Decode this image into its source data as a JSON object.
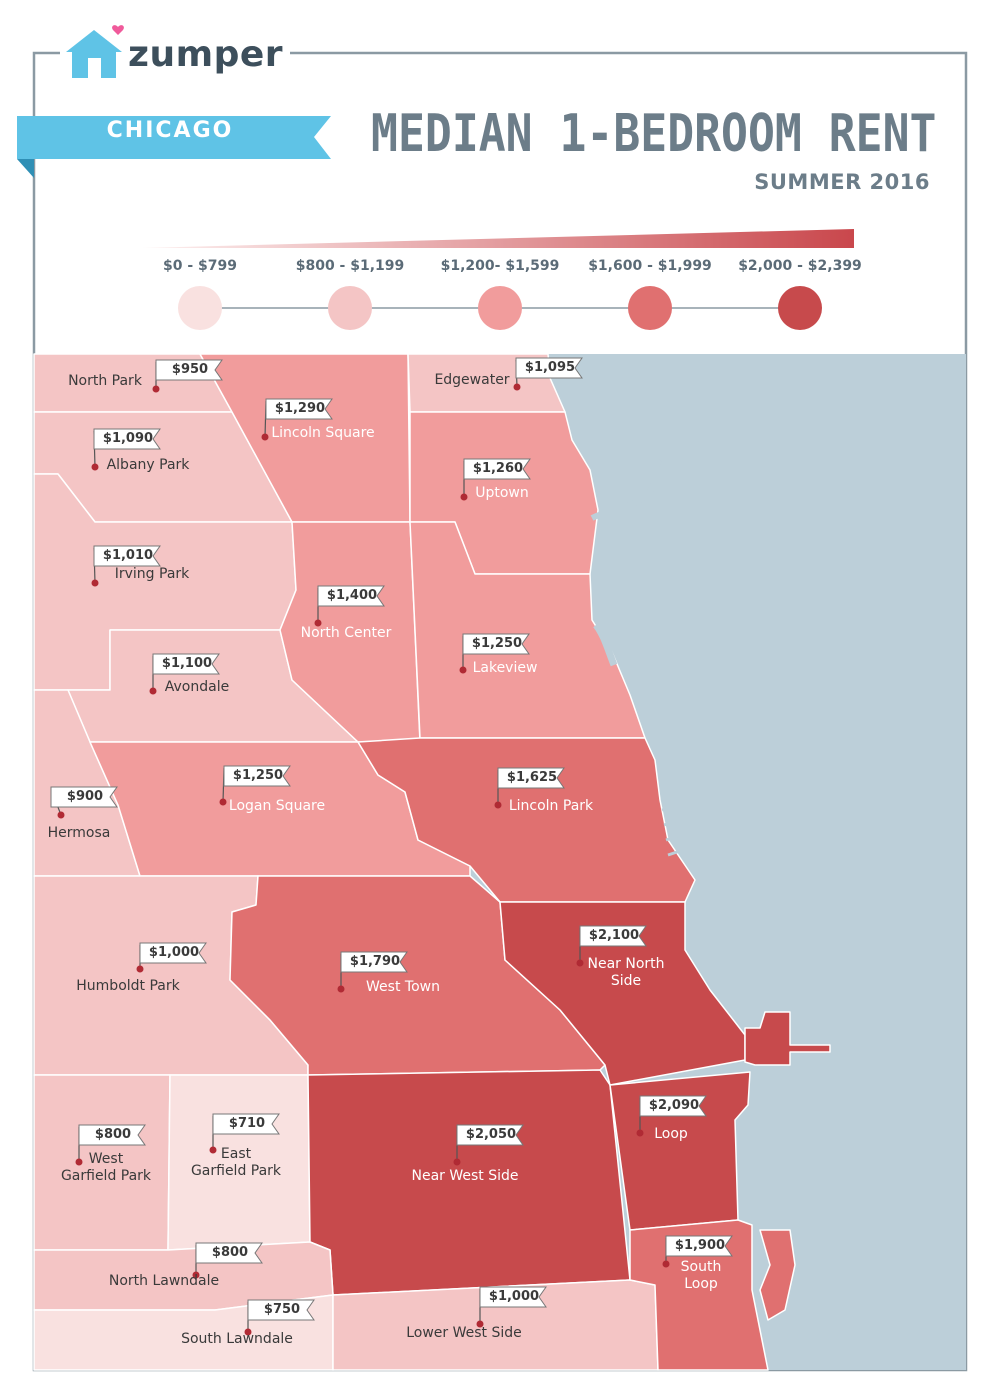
{
  "brand": {
    "name": "zumper",
    "logo_icon": "house-heart-icon"
  },
  "header": {
    "city": "CHICAGO",
    "title": "MEDIAN 1-BEDROOM RENT",
    "subtitle": "SUMMER 2016"
  },
  "legend": {
    "ranges": [
      {
        "label": "$0 - $799",
        "color": "#f9e1e0"
      },
      {
        "label": "$800 - $1,199",
        "color": "#f4c5c5"
      },
      {
        "label": "$1,200- $1,599",
        "color": "#f19c9c"
      },
      {
        "label": "$1,600 - $1,999",
        "color": "#e07070"
      },
      {
        "label": "$2,000 - $2,399",
        "color": "#c74a4c"
      }
    ]
  },
  "colors": {
    "water": "#bccfd9",
    "border": "#8b9aa3",
    "ribbon": "#5fc3e6",
    "pin": "#b02a34"
  },
  "neighborhoods": [
    {
      "name": "North Park",
      "price": "$950",
      "tier": 1
    },
    {
      "name": "Lincoln Square",
      "price": "$1,290",
      "tier": 2
    },
    {
      "name": "Edgewater",
      "price": "$1,095",
      "tier": 1
    },
    {
      "name": "Albany Park",
      "price": "$1,090",
      "tier": 1
    },
    {
      "name": "Uptown",
      "price": "$1,260",
      "tier": 2
    },
    {
      "name": "Irving Park",
      "price": "$1,010",
      "tier": 1
    },
    {
      "name": "North Center",
      "price": "$1,400",
      "tier": 2
    },
    {
      "name": "Lakeview",
      "price": "$1,250",
      "tier": 2
    },
    {
      "name": "Avondale",
      "price": "$1,100",
      "tier": 1
    },
    {
      "name": "Logan Square",
      "price": "$1,250",
      "tier": 2
    },
    {
      "name": "Lincoln Park",
      "price": "$1,625",
      "tier": 3
    },
    {
      "name": "Hermosa",
      "price": "$900",
      "tier": 1
    },
    {
      "name": "Humboldt Park",
      "price": "$1,000",
      "tier": 1
    },
    {
      "name": "West Town",
      "price": "$1,790",
      "tier": 3
    },
    {
      "name": "Near North\nSide",
      "price": "$2,100",
      "tier": 4
    },
    {
      "name": "West\nGarfield Park",
      "price": "$800",
      "tier": 1
    },
    {
      "name": "East\nGarfield Park",
      "price": "$710",
      "tier": 0
    },
    {
      "name": "Near West Side",
      "price": "$2,050",
      "tier": 4
    },
    {
      "name": "Loop",
      "price": "$2,090",
      "tier": 4
    },
    {
      "name": "North Lawndale",
      "price": "$800",
      "tier": 1
    },
    {
      "name": "South Lawndale",
      "price": "$750",
      "tier": 0
    },
    {
      "name": "Lower West Side",
      "price": "$1,000",
      "tier": 1
    },
    {
      "name": "South\nLoop",
      "price": "$1,900",
      "tier": 3
    }
  ]
}
